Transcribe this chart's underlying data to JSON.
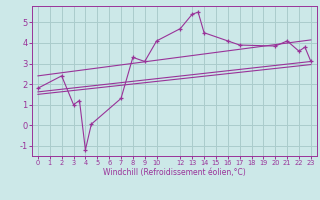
{
  "bg_color": "#cce8e8",
  "grid_color": "#aacccc",
  "line_color": "#993399",
  "xlabel": "Windchill (Refroidissement éolien,°C)",
  "xlim": [
    -0.5,
    23.5
  ],
  "ylim": [
    -1.5,
    5.8
  ],
  "xticks": [
    0,
    1,
    2,
    3,
    4,
    5,
    6,
    7,
    8,
    9,
    10,
    12,
    13,
    14,
    15,
    16,
    17,
    18,
    19,
    20,
    21,
    22,
    23
  ],
  "yticks": [
    -1,
    0,
    1,
    2,
    3,
    4,
    5
  ],
  "data_line": {
    "x": [
      0,
      2,
      3,
      3.5,
      4,
      4.5,
      7,
      8,
      9,
      10,
      12,
      13,
      13.5,
      14,
      16,
      17,
      20,
      21,
      22,
      22.5,
      23
    ],
    "y": [
      1.8,
      2.4,
      1.0,
      1.2,
      -1.2,
      0.05,
      1.3,
      3.3,
      3.1,
      4.1,
      4.7,
      5.4,
      5.5,
      4.5,
      4.1,
      3.9,
      3.85,
      4.1,
      3.6,
      3.8,
      3.1
    ]
  },
  "reg_line1": {
    "x": [
      0,
      23
    ],
    "y": [
      1.62,
      3.1
    ]
  },
  "reg_line2": {
    "x": [
      0,
      23
    ],
    "y": [
      1.5,
      2.95
    ]
  },
  "reg_line3": {
    "x": [
      0,
      23
    ],
    "y": [
      2.4,
      4.15
    ]
  }
}
